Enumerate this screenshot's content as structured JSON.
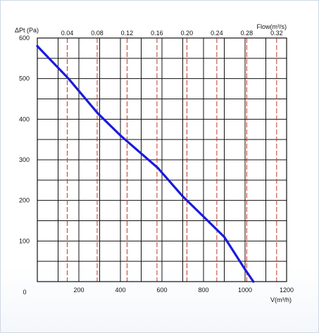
{
  "chart_data": {
    "type": "line",
    "ylabel": "ΔPt (Pa)",
    "xlabel": "V(m³/h)",
    "top_axis_label": "Flow(m³/s)",
    "xlim": [
      0,
      1200
    ],
    "ylim": [
      0,
      600
    ],
    "x_ticks": [
      200,
      400,
      600,
      800,
      1000,
      1200
    ],
    "x_tick_labels": [
      "200",
      "400",
      "600",
      "800",
      "1000",
      "1200"
    ],
    "y_ticks": [
      100,
      200,
      300,
      400,
      500,
      600
    ],
    "y_tick_labels": [
      "100",
      "200",
      "300",
      "400",
      "500",
      "600"
    ],
    "origin_label": "0",
    "top_ticks": [
      0.04,
      0.08,
      0.12,
      0.16,
      0.2,
      0.24,
      0.28,
      0.32
    ],
    "top_tick_labels": [
      "0.04",
      "0.08",
      "0.12",
      "0.16",
      "0.20",
      "0.24",
      "0.28",
      "0.32"
    ],
    "grid": true,
    "series": [
      {
        "color": "#1a1adb",
        "x": [
          0,
          150,
          290,
          400,
          580,
          700,
          830,
          900,
          1000,
          1040
        ],
        "y": [
          580,
          500,
          415,
          360,
          280,
          210,
          145,
          110,
          30,
          0
        ]
      }
    ],
    "colors": {
      "grid": "#111111",
      "flow_grid": "#c0392b",
      "line": "#1a1adb"
    }
  }
}
